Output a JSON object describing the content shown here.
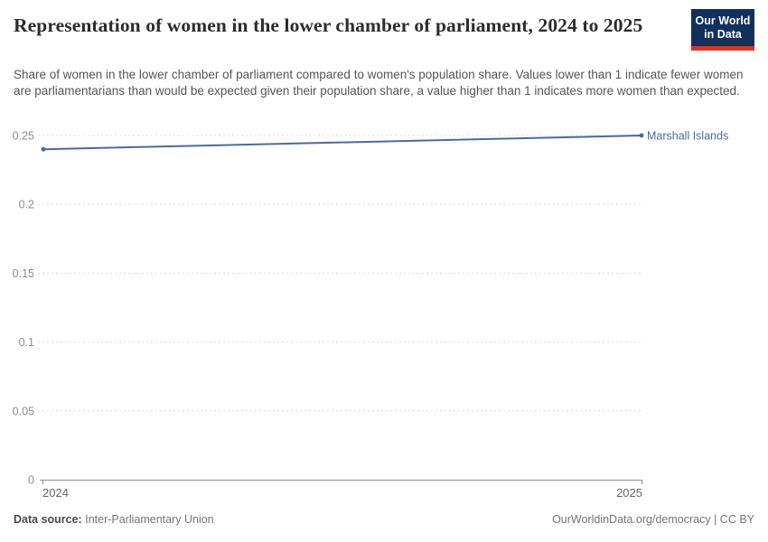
{
  "header": {
    "title": "Representation of women in the lower chamber of parliament, 2024 to 2025",
    "subtitle": "Share of women in the lower chamber of parliament compared to women's population share. Values lower than 1 indicate fewer women are parliamentarians than would be expected given their population share, a value higher than 1 indicates more women than expected.",
    "logo": {
      "line1": "Our World",
      "line2": "in Data",
      "bg_color": "#12305b",
      "accent_color": "#d8352c"
    }
  },
  "chart_data": {
    "type": "line",
    "x": [
      2024,
      2025
    ],
    "series": [
      {
        "name": "Marshall Islands",
        "values": [
          0.24,
          0.25
        ],
        "color": "#4c6a9c"
      }
    ],
    "xlabel": "",
    "ylabel": "",
    "ylim": [
      0,
      0.25
    ],
    "yticks": [
      {
        "value": 0,
        "label": "0"
      },
      {
        "value": 0.05,
        "label": "0.05"
      },
      {
        "value": 0.1,
        "label": "0.1"
      },
      {
        "value": 0.15,
        "label": "0.15"
      },
      {
        "value": 0.2,
        "label": "0.2"
      },
      {
        "value": 0.25,
        "label": "0.25"
      }
    ],
    "xticks": [
      {
        "value": 2024,
        "label": "2024"
      },
      {
        "value": 2025,
        "label": "2025"
      }
    ],
    "grid": "horizontal-dashed",
    "legend_position": "end-of-line-label",
    "gridline_color": "#dcdcdc",
    "axis_line_color": "#8f8f8f"
  },
  "footer": {
    "source_label": "Data source:",
    "source_value": "Inter-Parliamentary Union",
    "credit": "OurWorldinData.org/democracy | CC BY"
  }
}
